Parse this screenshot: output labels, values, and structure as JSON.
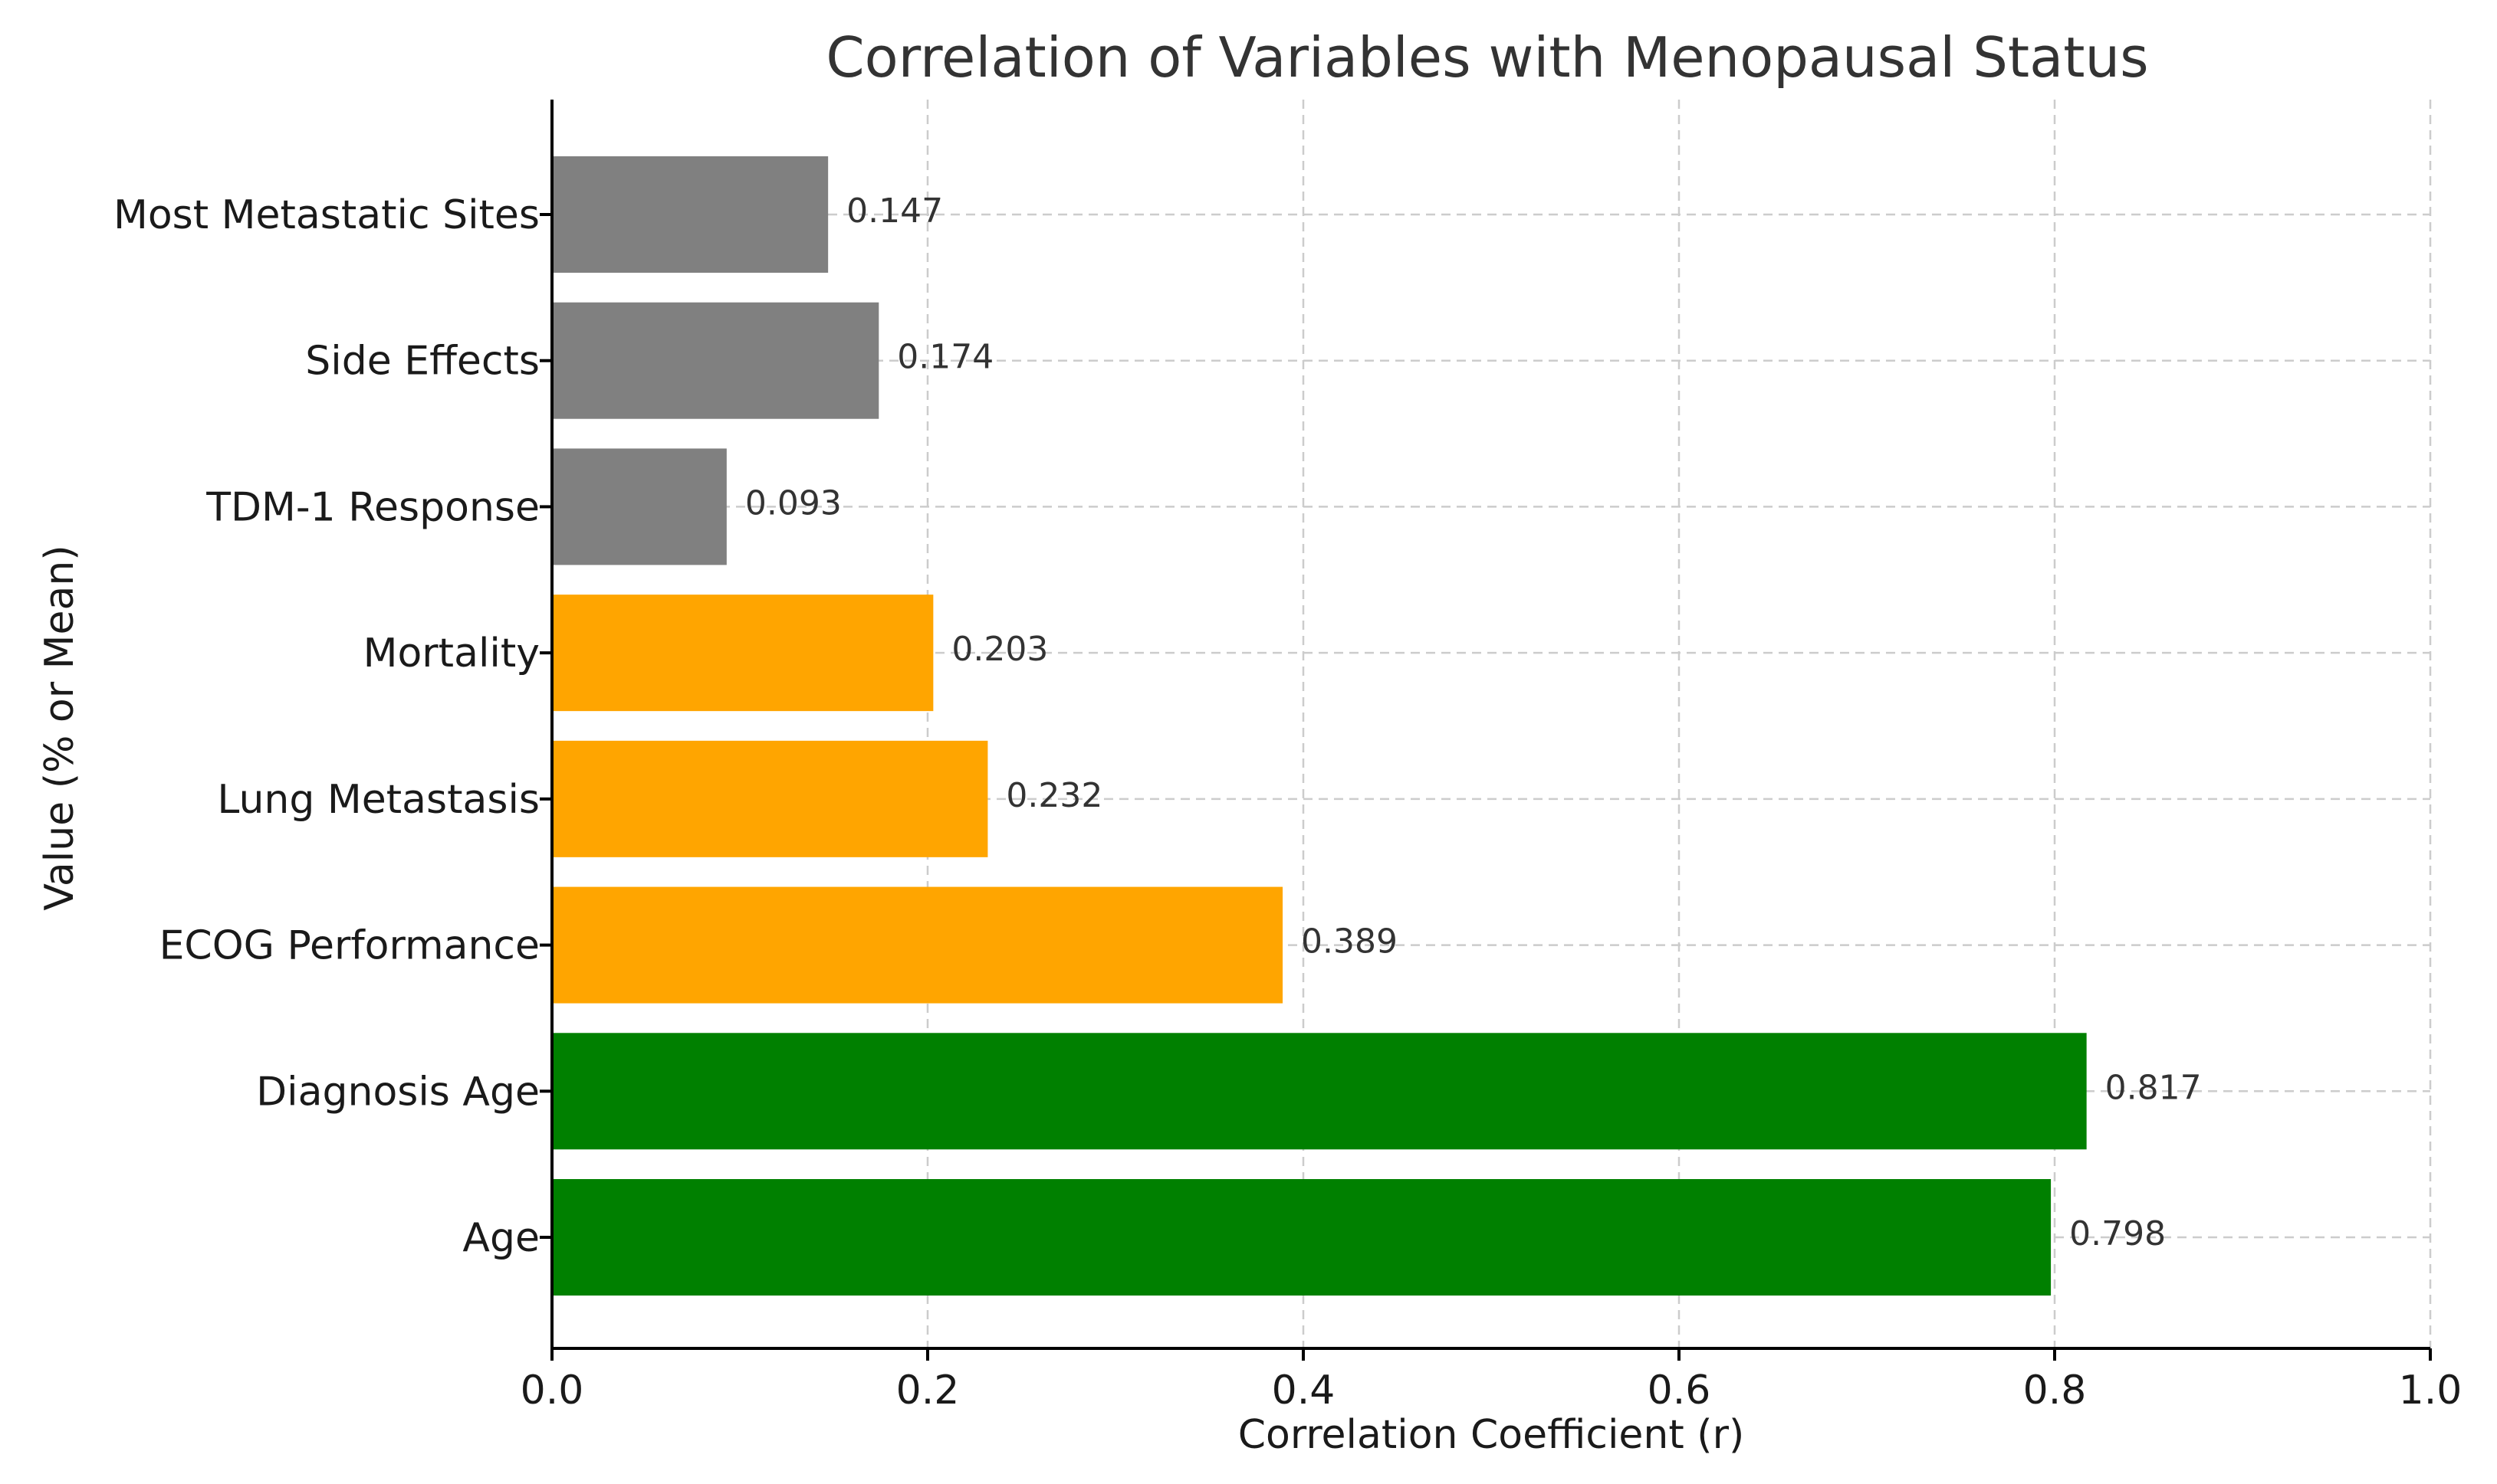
{
  "chart_data": {
    "type": "bar",
    "orientation": "horizontal",
    "title": "Correlation of Variables with Menopausal Status",
    "xlabel": "Correlation Coefficient (r)",
    "ylabel": "Value (% or Mean)",
    "xlim": [
      0.0,
      1.0
    ],
    "xticks": [
      "0.0",
      "0.2",
      "0.4",
      "0.6",
      "0.8",
      "1.0"
    ],
    "xtick_values": [
      0.0,
      0.2,
      0.4,
      0.6,
      0.8,
      1.0
    ],
    "grid": true,
    "categories": [
      "Most Metastatic Sites",
      "Side Effects",
      "TDM-1 Response",
      "Mortality",
      "Lung Metastasis",
      "ECOG Performance",
      "Diagnosis Age",
      "Age"
    ],
    "values": [
      0.147,
      0.174,
      0.093,
      0.203,
      0.232,
      0.389,
      0.817,
      0.798
    ],
    "value_labels": [
      "0.147",
      "0.174",
      "0.093",
      "0.203",
      "0.232",
      "0.389",
      "0.817",
      "0.798"
    ],
    "colors": [
      "#808080",
      "#808080",
      "#808080",
      "#ffa500",
      "#ffa500",
      "#ffa500",
      "#008000",
      "#008000"
    ]
  }
}
